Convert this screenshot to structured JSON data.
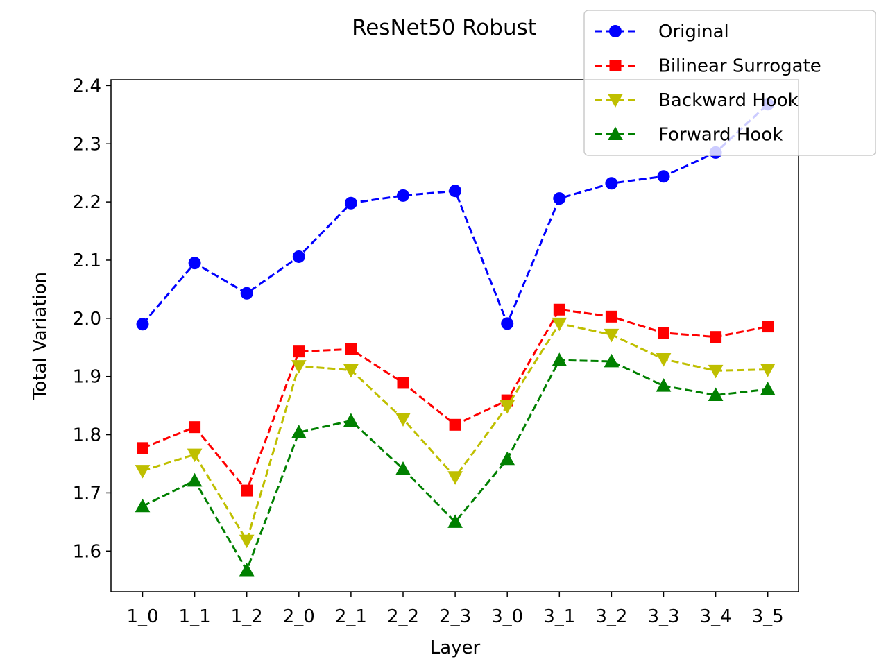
{
  "chart_data": {
    "type": "line",
    "title": "ResNet50 Robust",
    "xlabel": "Layer",
    "ylabel": "Total Variation",
    "categories": [
      "1_0",
      "1_1",
      "1_2",
      "2_0",
      "2_1",
      "2_2",
      "2_3",
      "3_0",
      "3_1",
      "3_2",
      "3_3",
      "3_4",
      "3_5"
    ],
    "ylim": [
      1.53,
      2.41
    ],
    "yticks": [
      "1.6",
      "1.7",
      "1.8",
      "1.9",
      "2.0",
      "2.1",
      "2.2",
      "2.3",
      "2.4"
    ],
    "grid": false,
    "legend_position": "top-right",
    "series": [
      {
        "name": "Original",
        "color": "#0000ff",
        "marker": "circle",
        "values": [
          1.99,
          2.095,
          2.043,
          2.106,
          2.198,
          2.211,
          2.219,
          1.991,
          2.206,
          2.232,
          2.244,
          2.285,
          2.368
        ]
      },
      {
        "name": "Bilinear Surrogate",
        "color": "#ff0000",
        "marker": "square",
        "values": [
          1.777,
          1.813,
          1.704,
          1.943,
          1.947,
          1.889,
          1.817,
          1.859,
          2.015,
          2.003,
          1.975,
          1.968,
          1.986
        ]
      },
      {
        "name": "Backward Hook",
        "color": "#bfbf00",
        "marker": "triangle-down",
        "values": [
          1.738,
          1.766,
          1.618,
          1.918,
          1.911,
          1.827,
          1.727,
          1.849,
          1.991,
          1.972,
          1.93,
          1.91,
          1.912
        ]
      },
      {
        "name": "Forward Hook",
        "color": "#008000",
        "marker": "triangle-up",
        "values": [
          1.677,
          1.721,
          1.567,
          1.804,
          1.824,
          1.741,
          1.65,
          1.758,
          1.928,
          1.926,
          1.884,
          1.868,
          1.878
        ]
      }
    ]
  }
}
